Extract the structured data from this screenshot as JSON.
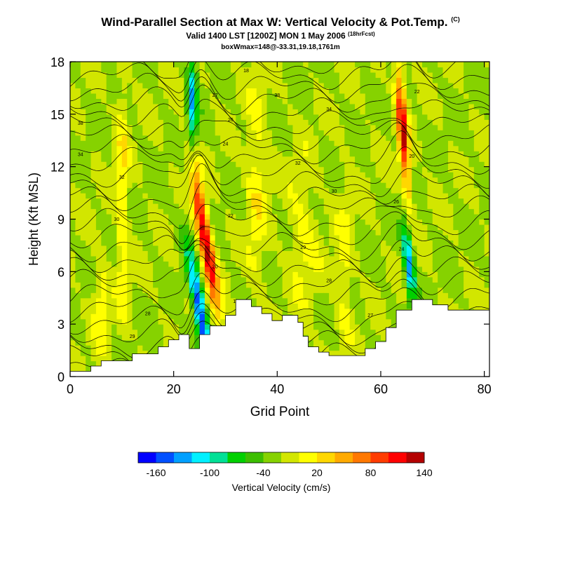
{
  "chart_data": {
    "type": "heatmap",
    "title": "Wind-Parallel Section at Max W: Vertical Velocity & Pot.Temp.",
    "title_mark": "(C)",
    "subtitle": "Valid 1400 LST [1200Z] MON 1 May 2006",
    "subtitle_note": "(18hrFcst)",
    "subtitle2": "boxWmax=148@-33.31,19.18,1761m",
    "xlabel": "Grid Point",
    "ylabel": "Height (Kft MSL)",
    "xlim": [
      0,
      81
    ],
    "ylim": [
      0,
      18
    ],
    "x_ticks": [
      "0",
      "20",
      "40",
      "60",
      "80"
    ],
    "y_ticks": [
      "0",
      "3",
      "6",
      "9",
      "12",
      "15",
      "18"
    ],
    "colorbar": {
      "label": "Vertical Velocity (cm/s)",
      "tick_labels": [
        "-160",
        "-100",
        "-40",
        "20",
        "80",
        "140"
      ],
      "colors": [
        "#0000ff",
        "#0050ff",
        "#00a0ff",
        "#00f0ff",
        "#00e096",
        "#00d000",
        "#3cbe00",
        "#86d200",
        "#d2e600",
        "#ffff00",
        "#ffd700",
        "#ffaa00",
        "#ff7800",
        "#ff3c00",
        "#ff0000",
        "#b40000"
      ]
    },
    "contour_labels": [
      "38",
      "34",
      "32",
      "30",
      "29",
      "28",
      "27",
      "26",
      "24",
      "22",
      "20",
      "18"
    ],
    "updraft_cores": [
      {
        "x": 26,
        "z": 8,
        "w": 148
      },
      {
        "x": 64.5,
        "z": 16,
        "w": 140
      },
      {
        "x": 10,
        "z": 11,
        "w": 40
      }
    ],
    "downdraft_cores": [
      {
        "x": 21.5,
        "z": 3,
        "w": -160
      },
      {
        "x": 65,
        "z": 7,
        "w": -110
      },
      {
        "x": 23.5,
        "z": 15,
        "w": -100
      }
    ],
    "terrain": [
      [
        0,
        0.3
      ],
      [
        4,
        0.3
      ],
      [
        4,
        0.6
      ],
      [
        6,
        0.6
      ],
      [
        6,
        0.9
      ],
      [
        12,
        0.9
      ],
      [
        12,
        1.3
      ],
      [
        17,
        1.3
      ],
      [
        17,
        1.7
      ],
      [
        19,
        1.7
      ],
      [
        19,
        2.1
      ],
      [
        21,
        2.1
      ],
      [
        21,
        2.4
      ],
      [
        23,
        2.4
      ],
      [
        23,
        1.6
      ],
      [
        25,
        1.6
      ],
      [
        25,
        2.4
      ],
      [
        27,
        2.4
      ],
      [
        27,
        2.9
      ],
      [
        30,
        2.9
      ],
      [
        30,
        3.5
      ],
      [
        32,
        3.5
      ],
      [
        32,
        4.4
      ],
      [
        35,
        4.4
      ],
      [
        35,
        4.0
      ],
      [
        37,
        4.0
      ],
      [
        37,
        3.6
      ],
      [
        39,
        3.6
      ],
      [
        39,
        3.2
      ],
      [
        41,
        3.2
      ],
      [
        41,
        3.5
      ],
      [
        44,
        3.5
      ],
      [
        44,
        3.1
      ],
      [
        45,
        3.1
      ],
      [
        45,
        2.3
      ],
      [
        46,
        2.3
      ],
      [
        46,
        1.7
      ],
      [
        48,
        1.7
      ],
      [
        48,
        1.4
      ],
      [
        50,
        1.4
      ],
      [
        50,
        1.2
      ],
      [
        57,
        1.2
      ],
      [
        57,
        1.6
      ],
      [
        59,
        1.6
      ],
      [
        59,
        2.0
      ],
      [
        61,
        2.0
      ],
      [
        61,
        2.8
      ],
      [
        63,
        2.8
      ],
      [
        63,
        3.8
      ],
      [
        66,
        3.8
      ],
      [
        66,
        4.4
      ],
      [
        70,
        4.4
      ],
      [
        70,
        4.1
      ],
      [
        73,
        4.1
      ],
      [
        73,
        3.8
      ],
      [
        81,
        3.8
      ]
    ]
  }
}
